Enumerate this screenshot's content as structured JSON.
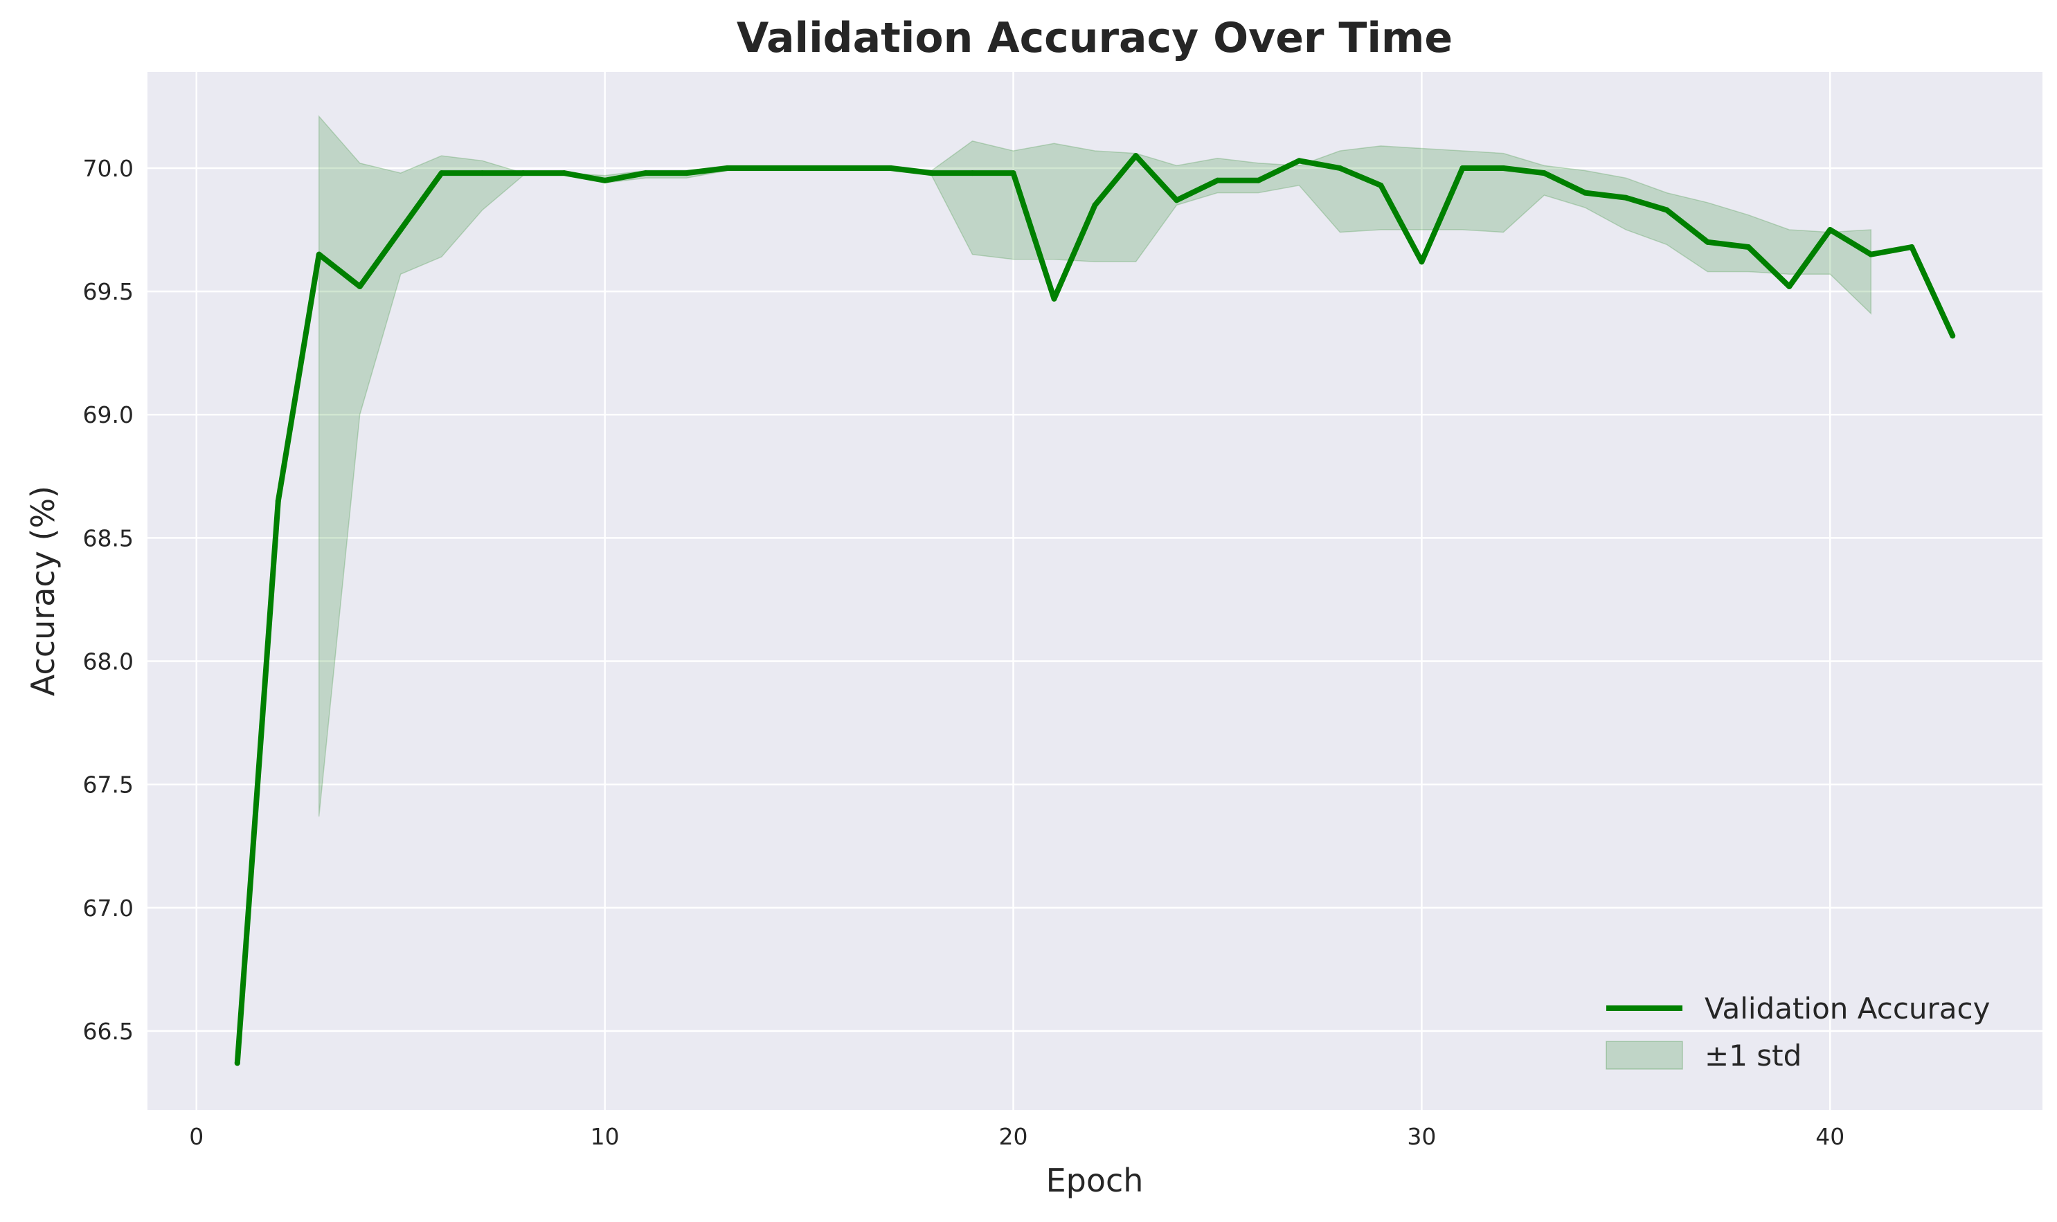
{
  "chart_data": {
    "type": "line",
    "title": "Validation Accuracy Over Time",
    "xlabel": "Epoch",
    "ylabel": "Accuracy (%)",
    "xlim": [
      -1.2,
      45.2
    ],
    "ylim": [
      66.18,
      70.39
    ],
    "xticks": [
      0,
      10,
      20,
      30,
      40
    ],
    "yticks": [
      66.5,
      67.0,
      67.5,
      68.0,
      68.5,
      69.0,
      69.5,
      70.0
    ],
    "ytick_labels": [
      "66.5",
      "67.0",
      "67.5",
      "68.0",
      "68.5",
      "69.0",
      "69.5",
      "70.0"
    ],
    "grid": true,
    "legend_position": "bottom-right",
    "series": [
      {
        "name": "Validation Accuracy",
        "color": "#008000",
        "x": [
          1,
          2,
          3,
          4,
          5,
          6,
          7,
          8,
          9,
          10,
          11,
          12,
          13,
          14,
          15,
          16,
          17,
          18,
          19,
          20,
          21,
          22,
          23,
          24,
          25,
          26,
          27,
          28,
          29,
          30,
          31,
          32,
          33,
          34,
          35,
          36,
          37,
          38,
          39,
          40,
          41,
          42,
          43
        ],
        "y": [
          66.37,
          68.65,
          69.65,
          69.52,
          69.75,
          69.98,
          69.98,
          69.98,
          69.98,
          69.95,
          69.98,
          69.98,
          70.0,
          70.0,
          70.0,
          70.0,
          70.0,
          69.98,
          69.98,
          69.98,
          69.47,
          69.85,
          70.05,
          69.87,
          69.95,
          69.95,
          70.03,
          70.0,
          69.93,
          69.62,
          70.0,
          70.0,
          69.98,
          69.9,
          69.88,
          69.83,
          69.7,
          69.68,
          69.52,
          69.75,
          69.65,
          69.68,
          69.32
        ]
      }
    ],
    "bands": [
      {
        "name": "±1 std",
        "color": "#2e8b2e",
        "x": [
          3,
          4,
          5,
          6,
          7,
          8,
          9,
          10,
          11,
          12,
          13,
          14,
          15,
          16,
          17,
          18,
          19,
          20,
          21,
          22,
          23,
          24,
          25,
          26,
          27,
          28,
          29,
          30,
          31,
          32,
          33,
          34,
          35,
          36,
          37,
          38,
          39,
          40,
          41
        ],
        "upper": [
          70.21,
          70.02,
          69.98,
          70.05,
          70.03,
          69.98,
          69.98,
          69.97,
          69.99,
          69.99,
          70.01,
          70.01,
          70.01,
          70.01,
          70.01,
          69.99,
          70.11,
          70.07,
          70.1,
          70.07,
          70.06,
          70.01,
          70.04,
          70.02,
          70.01,
          70.07,
          70.09,
          70.08,
          70.07,
          70.06,
          70.01,
          69.99,
          69.96,
          69.9,
          69.86,
          69.81,
          69.75,
          69.74,
          69.75
        ],
        "lower": [
          67.37,
          69.0,
          69.57,
          69.64,
          69.83,
          69.97,
          69.97,
          69.94,
          69.96,
          69.96,
          69.99,
          69.99,
          69.99,
          69.99,
          69.99,
          69.97,
          69.65,
          69.63,
          69.63,
          69.62,
          69.62,
          69.85,
          69.9,
          69.9,
          69.93,
          69.74,
          69.75,
          69.75,
          69.75,
          69.74,
          69.89,
          69.84,
          69.75,
          69.69,
          69.58,
          69.58,
          69.57,
          69.57,
          69.41
        ]
      }
    ]
  }
}
